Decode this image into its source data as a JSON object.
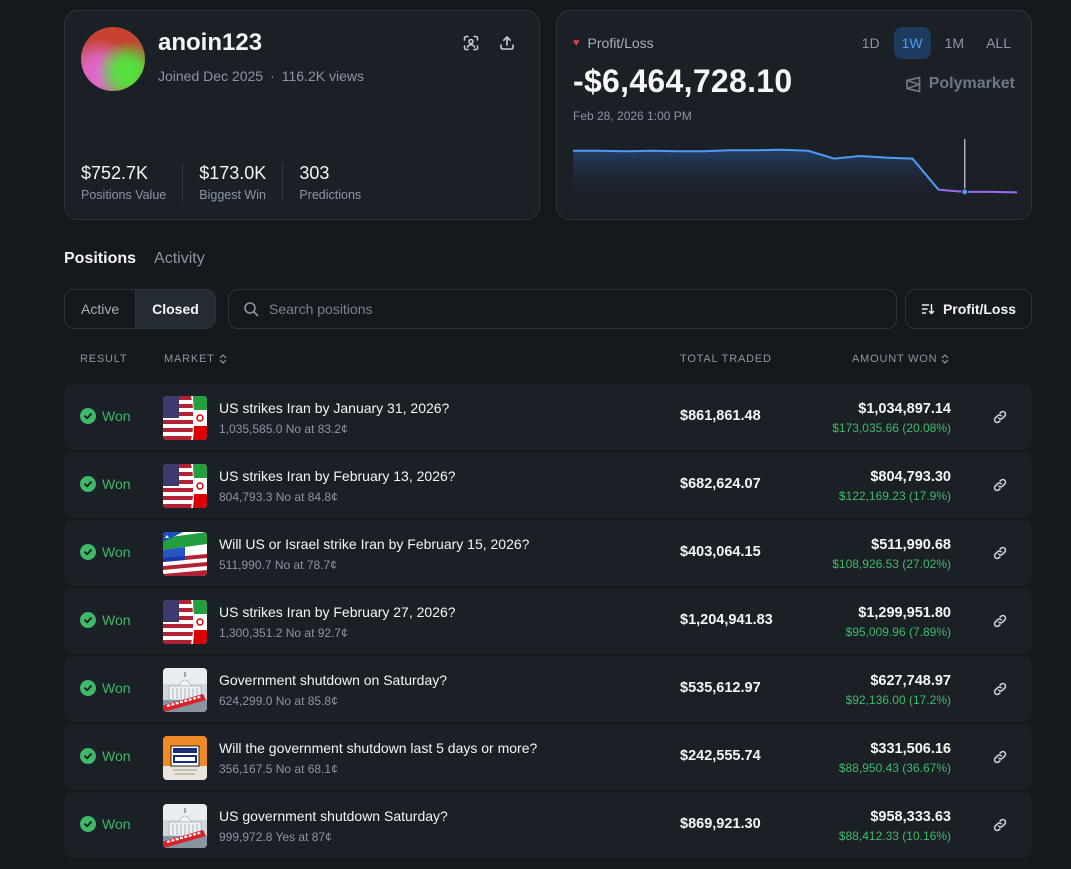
{
  "profile": {
    "username": "anoin123",
    "joined": "Joined Dec 2025",
    "views": "116.2K views",
    "stats": [
      {
        "value": "$752.7K",
        "label": "Positions Value"
      },
      {
        "value": "$173.0K",
        "label": "Biggest Win"
      },
      {
        "value": "303",
        "label": "Predictions"
      }
    ],
    "icons": [
      "scan-icon",
      "share-icon"
    ]
  },
  "pnl": {
    "label": "Profit/Loss",
    "value": "-$6,464,728.10",
    "date": "Feb 28, 2026 1:00 PM",
    "ranges": [
      "1D",
      "1W",
      "1M",
      "ALL"
    ],
    "active_range": "1W",
    "brand": "Polymarket",
    "accent": "#4d9bf5",
    "down_color": "#9b6cf2",
    "chart_data": {
      "type": "line",
      "y_relative": [
        0.85,
        0.85,
        0.84,
        0.85,
        0.84,
        0.84,
        0.86,
        0.86,
        0.87,
        0.85,
        0.7,
        0.75,
        0.72,
        0.7,
        0.1,
        0.06,
        0.06,
        0.05
      ]
    }
  },
  "tabs": [
    {
      "label": "Positions",
      "active": true
    },
    {
      "label": "Activity",
      "active": false
    }
  ],
  "filters": {
    "toggle": [
      "Active",
      "Closed"
    ],
    "active_toggle": "Closed",
    "search_placeholder": "Search positions",
    "sort_label": "Profit/Loss"
  },
  "table": {
    "headers": {
      "result": "RESULT",
      "market": "MARKET",
      "total_traded": "TOTAL TRADED",
      "amount_won": "AMOUNT WON"
    },
    "rows": [
      {
        "result": "Won",
        "thumb": "us-iran-flag",
        "title": "US strikes Iran by January 31, 2026?",
        "sub": "1,035,585.0 No at 83.2¢",
        "traded": "$861,861.48",
        "won": "$1,034,897.14",
        "won_sub": "$173,035.66 (20.08%)"
      },
      {
        "result": "Won",
        "thumb": "us-iran-flag",
        "title": "US strikes Iran by February 13, 2026?",
        "sub": "804,793.3 No at 84.8¢",
        "traded": "$682,624.07",
        "won": "$804,793.30",
        "won_sub": "$122,169.23 (17.9%)"
      },
      {
        "result": "Won",
        "thumb": "us-israel-iran-flag",
        "title": "Will US or Israel strike Iran by February 15, 2026?",
        "sub": "511,990.7 No at 78.7¢",
        "traded": "$403,064.15",
        "won": "$511,990.68",
        "won_sub": "$108,926.53 (27.02%)"
      },
      {
        "result": "Won",
        "thumb": "us-iran-flag",
        "title": "US strikes Iran by February 27, 2026?",
        "sub": "1,300,351.2 No at 92.7¢",
        "traded": "$1,204,941.83",
        "won": "$1,299,951.80",
        "won_sub": "$95,009.96 (7.89%)"
      },
      {
        "result": "Won",
        "thumb": "capitol-closed",
        "title": "Government shutdown on Saturday?",
        "sub": "624,299.0 No at 85.8¢",
        "traded": "$535,612.97",
        "won": "$627,748.97",
        "won_sub": "$92,136.00 (17.2%)"
      },
      {
        "result": "Won",
        "thumb": "closed-sign",
        "title": "Will the government shutdown last 5 days or more?",
        "sub": "356,167.5 No at 68.1¢",
        "traded": "$242,555.74",
        "won": "$331,506.16",
        "won_sub": "$88,950.43 (36.67%)"
      },
      {
        "result": "Won",
        "thumb": "capitol-closed",
        "title": "US government shutdown Saturday?",
        "sub": "999,972.8 Yes at 87¢",
        "traded": "$869,921.30",
        "won": "$958,333.63",
        "won_sub": "$88,412.33 (10.16%)"
      }
    ]
  }
}
